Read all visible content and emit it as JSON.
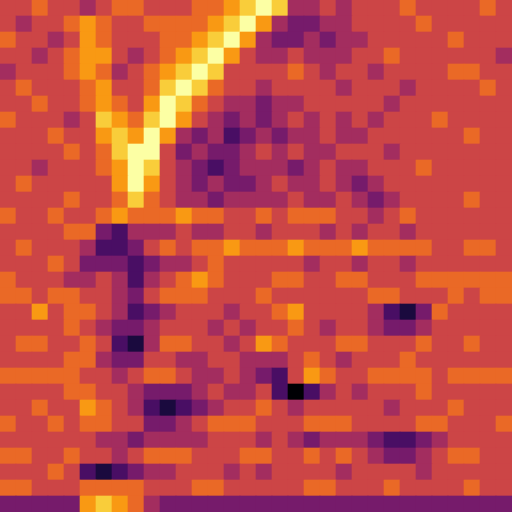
{
  "chart_data": {
    "type": "heatmap",
    "tick_labels": false,
    "cells": [
      [
        5,
        5,
        6,
        5,
        5,
        4,
        5,
        6,
        6,
        5,
        5,
        5,
        6,
        6,
        7,
        8,
        9,
        8,
        4,
        4,
        5,
        4,
        5,
        5,
        5,
        6,
        5,
        5,
        5,
        5,
        6,
        5
      ],
      [
        5,
        4,
        5,
        5,
        6,
        7,
        6,
        5,
        5,
        6,
        6,
        6,
        6,
        7,
        8,
        9,
        7,
        4,
        3,
        3,
        4,
        4,
        5,
        5,
        5,
        5,
        6,
        5,
        5,
        5,
        5,
        5
      ],
      [
        6,
        5,
        5,
        4,
        5,
        7,
        6,
        5,
        5,
        5,
        6,
        6,
        7,
        8,
        9,
        7,
        4,
        3,
        3,
        4,
        3,
        4,
        4,
        5,
        5,
        5,
        5,
        5,
        6,
        5,
        5,
        5
      ],
      [
        5,
        5,
        4,
        5,
        6,
        7,
        7,
        5,
        4,
        5,
        6,
        7,
        8,
        9,
        7,
        5,
        4,
        4,
        5,
        4,
        4,
        4,
        5,
        5,
        6,
        5,
        5,
        5,
        5,
        5,
        5,
        4
      ],
      [
        4,
        5,
        5,
        5,
        6,
        7,
        6,
        4,
        5,
        6,
        7,
        8,
        9,
        8,
        5,
        5,
        5,
        5,
        6,
        5,
        4,
        5,
        5,
        4,
        5,
        5,
        5,
        5,
        6,
        6,
        5,
        5
      ],
      [
        5,
        6,
        5,
        5,
        5,
        6,
        7,
        5,
        5,
        6,
        8,
        9,
        8,
        6,
        5,
        5,
        4,
        5,
        5,
        5,
        5,
        4,
        5,
        5,
        5,
        4,
        5,
        5,
        5,
        5,
        6,
        5
      ],
      [
        5,
        5,
        6,
        5,
        5,
        6,
        7,
        6,
        5,
        7,
        9,
        8,
        6,
        5,
        4,
        4,
        3,
        4,
        4,
        5,
        5,
        5,
        5,
        5,
        4,
        5,
        5,
        5,
        5,
        5,
        5,
        5
      ],
      [
        6,
        5,
        5,
        5,
        4,
        5,
        8,
        7,
        6,
        8,
        9,
        7,
        5,
        4,
        3,
        4,
        3,
        4,
        5,
        4,
        5,
        4,
        5,
        4,
        5,
        5,
        5,
        6,
        5,
        5,
        5,
        5
      ],
      [
        5,
        5,
        5,
        6,
        5,
        5,
        7,
        8,
        7,
        9,
        7,
        4,
        3,
        4,
        2,
        3,
        4,
        3,
        4,
        4,
        5,
        4,
        4,
        5,
        5,
        5,
        5,
        5,
        5,
        6,
        5,
        5
      ],
      [
        5,
        5,
        5,
        5,
        6,
        5,
        6,
        8,
        9,
        9,
        5,
        3,
        4,
        3,
        3,
        4,
        5,
        4,
        5,
        4,
        4,
        5,
        5,
        5,
        4,
        5,
        5,
        5,
        5,
        5,
        5,
        5
      ],
      [
        5,
        5,
        4,
        5,
        5,
        5,
        6,
        7,
        9,
        8,
        5,
        4,
        3,
        2,
        3,
        4,
        4,
        4,
        3,
        4,
        5,
        4,
        4,
        5,
        5,
        5,
        6,
        5,
        5,
        5,
        5,
        5
      ],
      [
        5,
        6,
        5,
        5,
        5,
        5,
        5,
        7,
        9,
        7,
        5,
        4,
        3,
        4,
        3,
        3,
        4,
        5,
        4,
        4,
        5,
        4,
        3,
        4,
        5,
        5,
        5,
        5,
        5,
        5,
        5,
        5
      ],
      [
        5,
        5,
        5,
        5,
        6,
        5,
        5,
        6,
        8,
        6,
        5,
        4,
        4,
        3,
        4,
        4,
        4,
        4,
        5,
        4,
        4,
        5,
        4,
        3,
        4,
        5,
        5,
        5,
        5,
        6,
        5,
        5
      ],
      [
        6,
        5,
        5,
        6,
        5,
        5,
        6,
        7,
        6,
        6,
        6,
        7,
        6,
        6,
        5,
        5,
        6,
        5,
        6,
        6,
        6,
        5,
        5,
        4,
        5,
        6,
        5,
        5,
        5,
        5,
        5,
        5
      ],
      [
        5,
        5,
        5,
        5,
        6,
        6,
        3,
        2,
        4,
        4,
        4,
        5,
        4,
        4,
        5,
        5,
        4,
        5,
        5,
        5,
        4,
        5,
        4,
        5,
        5,
        4,
        5,
        5,
        5,
        5,
        5,
        5
      ],
      [
        5,
        6,
        5,
        5,
        5,
        4,
        2,
        2,
        3,
        5,
        6,
        5,
        6,
        6,
        7,
        6,
        6,
        6,
        7,
        6,
        6,
        6,
        7,
        6,
        6,
        6,
        6,
        5,
        5,
        6,
        6,
        5
      ],
      [
        5,
        5,
        5,
        6,
        5,
        3,
        3,
        3,
        2,
        3,
        4,
        4,
        5,
        6,
        5,
        5,
        5,
        5,
        5,
        4,
        5,
        5,
        4,
        5,
        5,
        4,
        5,
        5,
        5,
        5,
        5,
        5
      ],
      [
        6,
        5,
        5,
        5,
        4,
        4,
        5,
        4,
        2,
        4,
        5,
        6,
        7,
        6,
        5,
        5,
        5,
        6,
        6,
        5,
        5,
        6,
        6,
        5,
        5,
        5,
        6,
        6,
        6,
        6,
        6,
        6
      ],
      [
        6,
        6,
        5,
        6,
        6,
        5,
        5,
        4,
        3,
        5,
        6,
        6,
        6,
        5,
        5,
        5,
        6,
        5,
        5,
        5,
        5,
        5,
        5,
        6,
        6,
        5,
        5,
        5,
        6,
        5,
        6,
        6
      ],
      [
        5,
        5,
        7,
        5,
        6,
        6,
        5,
        4,
        2,
        3,
        4,
        5,
        5,
        5,
        4,
        5,
        5,
        6,
        7,
        5,
        5,
        5,
        5,
        4,
        2,
        1,
        3,
        6,
        5,
        5,
        5,
        5
      ],
      [
        5,
        5,
        5,
        5,
        6,
        5,
        4,
        3,
        3,
        4,
        5,
        5,
        5,
        4,
        5,
        4,
        5,
        5,
        6,
        5,
        4,
        5,
        5,
        4,
        3,
        3,
        4,
        5,
        5,
        5,
        5,
        5
      ],
      [
        5,
        6,
        6,
        5,
        5,
        6,
        5,
        2,
        1,
        4,
        6,
        6,
        5,
        5,
        4,
        5,
        7,
        6,
        5,
        5,
        5,
        6,
        6,
        5,
        5,
        5,
        6,
        5,
        5,
        6,
        5,
        5
      ],
      [
        5,
        5,
        5,
        5,
        6,
        6,
        4,
        3,
        3,
        5,
        5,
        4,
        4,
        5,
        5,
        4,
        4,
        4,
        5,
        6,
        5,
        4,
        5,
        5,
        5,
        6,
        5,
        5,
        5,
        5,
        5,
        5
      ],
      [
        6,
        6,
        6,
        6,
        6,
        5,
        5,
        4,
        5,
        6,
        6,
        5,
        4,
        4,
        5,
        4,
        3,
        2,
        5,
        7,
        6,
        5,
        5,
        6,
        6,
        6,
        6,
        5,
        6,
        6,
        6,
        6
      ],
      [
        5,
        5,
        5,
        5,
        6,
        6,
        5,
        5,
        4,
        3,
        3,
        3,
        4,
        5,
        4,
        4,
        5,
        2,
        0,
        2,
        4,
        5,
        4,
        5,
        5,
        5,
        6,
        5,
        5,
        5,
        5,
        5
      ],
      [
        5,
        5,
        6,
        5,
        5,
        7,
        6,
        5,
        4,
        2,
        1,
        2,
        3,
        4,
        5,
        5,
        6,
        5,
        4,
        5,
        5,
        5,
        5,
        5,
        4,
        5,
        5,
        5,
        6,
        5,
        5,
        5
      ],
      [
        6,
        5,
        5,
        6,
        5,
        6,
        6,
        5,
        5,
        3,
        3,
        4,
        5,
        6,
        6,
        6,
        5,
        5,
        5,
        6,
        6,
        6,
        5,
        5,
        5,
        5,
        6,
        6,
        5,
        5,
        5,
        6
      ],
      [
        5,
        5,
        5,
        5,
        5,
        5,
        4,
        4,
        3,
        4,
        4,
        4,
        4,
        5,
        5,
        5,
        4,
        5,
        4,
        3,
        4,
        4,
        4,
        3,
        2,
        2,
        3,
        4,
        5,
        5,
        5,
        5
      ],
      [
        6,
        6,
        5,
        5,
        6,
        5,
        5,
        4,
        5,
        6,
        6,
        6,
        5,
        5,
        5,
        6,
        6,
        5,
        5,
        6,
        5,
        6,
        5,
        4,
        3,
        3,
        4,
        5,
        6,
        6,
        5,
        5
      ],
      [
        5,
        5,
        5,
        6,
        5,
        2,
        1,
        2,
        3,
        4,
        4,
        5,
        5,
        5,
        4,
        5,
        4,
        5,
        5,
        5,
        5,
        4,
        5,
        5,
        5,
        5,
        4,
        5,
        5,
        5,
        5,
        5
      ],
      [
        6,
        6,
        5,
        5,
        5,
        6,
        6,
        6,
        6,
        5,
        5,
        5,
        6,
        6,
        5,
        5,
        5,
        5,
        5,
        6,
        6,
        5,
        5,
        5,
        6,
        5,
        5,
        5,
        5,
        6,
        5,
        5
      ],
      [
        3,
        3,
        3,
        3,
        3,
        7,
        8,
        7,
        6,
        4,
        3,
        3,
        3,
        3,
        3,
        3,
        3,
        3,
        3,
        3,
        3,
        3,
        3,
        3,
        3,
        3,
        3,
        3,
        3,
        3,
        3,
        3
      ]
    ]
  }
}
